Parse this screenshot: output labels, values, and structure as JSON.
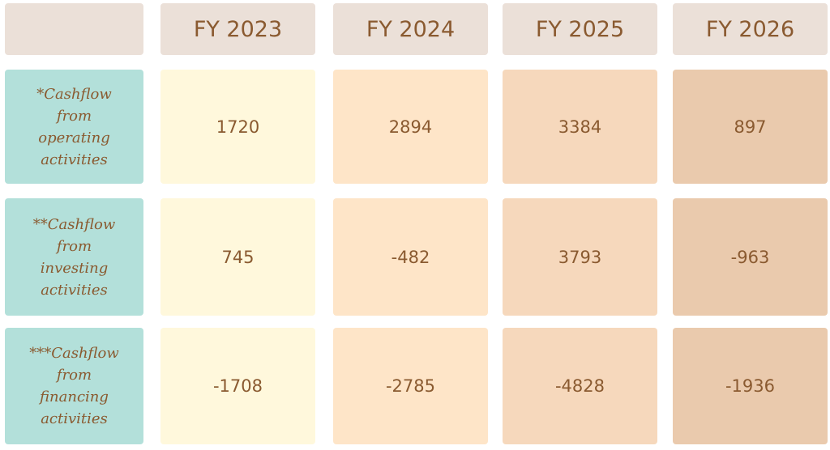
{
  "table": {
    "columns": [
      "FY 2023",
      "FY 2024",
      "FY 2025",
      "FY 2026"
    ],
    "rows": [
      {
        "label": "*Cashflow from operating activities",
        "values": [
          1720,
          2894,
          3384,
          897
        ]
      },
      {
        "label": "**Cashflow from investing activities",
        "values": [
          745,
          -482,
          3793,
          -963
        ]
      },
      {
        "label": "***Cashflow from financing activities",
        "values": [
          -1708,
          -2785,
          -4828,
          -1936
        ]
      }
    ]
  }
}
